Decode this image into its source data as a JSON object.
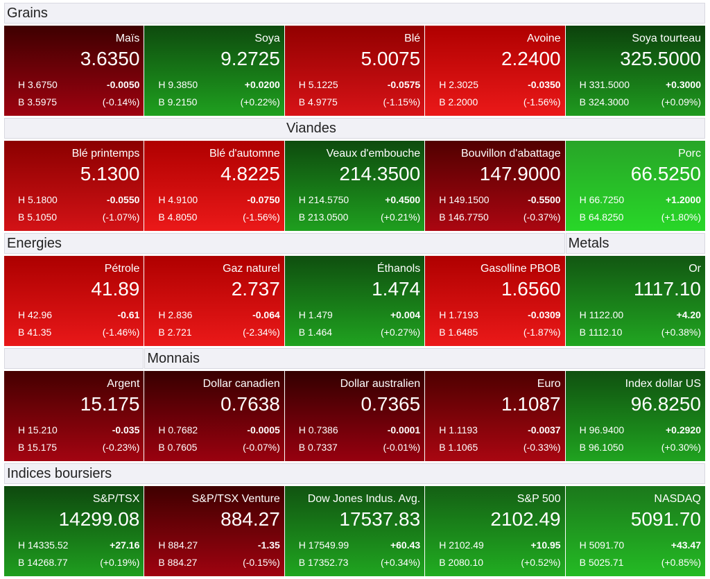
{
  "sections": [
    {
      "headers": [
        "Grains"
      ],
      "tiles": [
        {
          "name": "Maïs",
          "last": "3.6350",
          "high": "H 3.6750",
          "low": "B 3.5975",
          "change": "-0.0050",
          "percent": "(-0.14%)"
        },
        {
          "name": "Soya",
          "last": "9.2725",
          "high": "H 9.3850",
          "low": "B 9.2150",
          "change": "+0.0200",
          "percent": "(+0.22%)"
        },
        {
          "name": "Blé",
          "last": "5.0075",
          "high": "H 5.1225",
          "low": "B 4.9775",
          "change": "-0.0575",
          "percent": "(-1.15%)"
        },
        {
          "name": "Avoine",
          "last": "2.2400",
          "high": "H 2.3025",
          "low": "B 2.2000",
          "change": "-0.0350",
          "percent": "(-1.56%)"
        },
        {
          "name": "Soya tourteau",
          "last": "325.5000",
          "high": "H 331.5000",
          "low": "B 324.3000",
          "change": "+0.3000",
          "percent": "(+0.09%)"
        }
      ]
    },
    {
      "headers": [
        "Viandes"
      ],
      "tiles": [
        {
          "name": "Blé printemps",
          "last": "5.1300",
          "high": "H 5.1800",
          "low": "B 5.1050",
          "change": "-0.0550",
          "percent": "(-1.07%)"
        },
        {
          "name": "Blé d'automne",
          "last": "4.8225",
          "high": "H 4.9100",
          "low": "B 4.8050",
          "change": "-0.0750",
          "percent": "(-1.56%)"
        },
        {
          "name": "Veaux d'embouche",
          "last": "214.3500",
          "high": "H 214.5750",
          "low": "B 213.0500",
          "change": "+0.4500",
          "percent": "(+0.21%)"
        },
        {
          "name": "Bouvillon d'abattage",
          "last": "147.9000",
          "high": "H 149.1500",
          "low": "B 146.7750",
          "change": "-0.5500",
          "percent": "(-0.37%)"
        },
        {
          "name": "Porc",
          "last": "66.5250",
          "high": "H 66.7250",
          "low": "B 64.8250",
          "change": "+1.2000",
          "percent": "(+1.80%)"
        }
      ]
    },
    {
      "headers": [
        "Energies",
        "Metals"
      ],
      "tiles": [
        {
          "name": "Pétrole",
          "last": "41.89",
          "high": "H 42.96",
          "low": "B 41.35",
          "change": "-0.61",
          "percent": "(-1.46%)"
        },
        {
          "name": "Gaz naturel",
          "last": "2.737",
          "high": "H 2.836",
          "low": "B 2.721",
          "change": "-0.064",
          "percent": "(-2.34%)"
        },
        {
          "name": "Éthanols",
          "last": "1.474",
          "high": "H 1.479",
          "low": "B 1.464",
          "change": "+0.004",
          "percent": "(+0.27%)"
        },
        {
          "name": "Gasolline PBOB",
          "last": "1.6560",
          "high": "H 1.7193",
          "low": "B 1.6485",
          "change": "-0.0309",
          "percent": "(-1.87%)"
        },
        {
          "name": "Or",
          "last": "1117.10",
          "high": "H 1122.00",
          "low": "B 1112.10",
          "change": "+4.20",
          "percent": "(+0.38%)"
        }
      ]
    },
    {
      "headers": [
        "Monnais"
      ],
      "tiles": [
        {
          "name": "Argent",
          "last": "15.175",
          "high": "H 15.210",
          "low": "B 15.175",
          "change": "-0.035",
          "percent": "(-0.23%)"
        },
        {
          "name": "Dollar canadien",
          "last": "0.7638",
          "high": "H 0.7682",
          "low": "B 0.7605",
          "change": "-0.0005",
          "percent": "(-0.07%)"
        },
        {
          "name": "Dollar australien",
          "last": "0.7365",
          "high": "H 0.7386",
          "low": "B 0.7337",
          "change": "-0.0001",
          "percent": "(-0.01%)"
        },
        {
          "name": "Euro",
          "last": "1.1087",
          "high": "H 1.1193",
          "low": "B 1.1065",
          "change": "-0.0037",
          "percent": "(-0.33%)"
        },
        {
          "name": "Index dollar US",
          "last": "96.8250",
          "high": "H 96.9400",
          "low": "B 96.1050",
          "change": "+0.2920",
          "percent": "(+0.30%)"
        }
      ]
    },
    {
      "headers": [
        "Indices boursiers"
      ],
      "tiles": [
        {
          "name": "S&P/TSX",
          "last": "14299.08",
          "high": "H 14335.52",
          "low": "B 14268.77",
          "change": "+27.16",
          "percent": "(+0.19%)"
        },
        {
          "name": "S&P/TSX Venture",
          "last": "884.27",
          "high": "H 884.27",
          "low": "B 884.27",
          "change": "-1.35",
          "percent": "(-0.15%)"
        },
        {
          "name": "Dow Jones Indus. Avg.",
          "last": "17537.83",
          "high": "H 17549.99",
          "low": "B 17352.73",
          "change": "+60.43",
          "percent": "(+0.34%)"
        },
        {
          "name": "S&P 500",
          "last": "2102.49",
          "high": "H 2102.49",
          "low": "B 2080.10",
          "change": "+10.95",
          "percent": "(+0.52%)"
        },
        {
          "name": "NASDAQ",
          "last": "5091.70",
          "high": "H 5091.70",
          "low": "B 5025.71",
          "change": "+43.47",
          "percent": "(+0.85%)"
        }
      ]
    }
  ]
}
